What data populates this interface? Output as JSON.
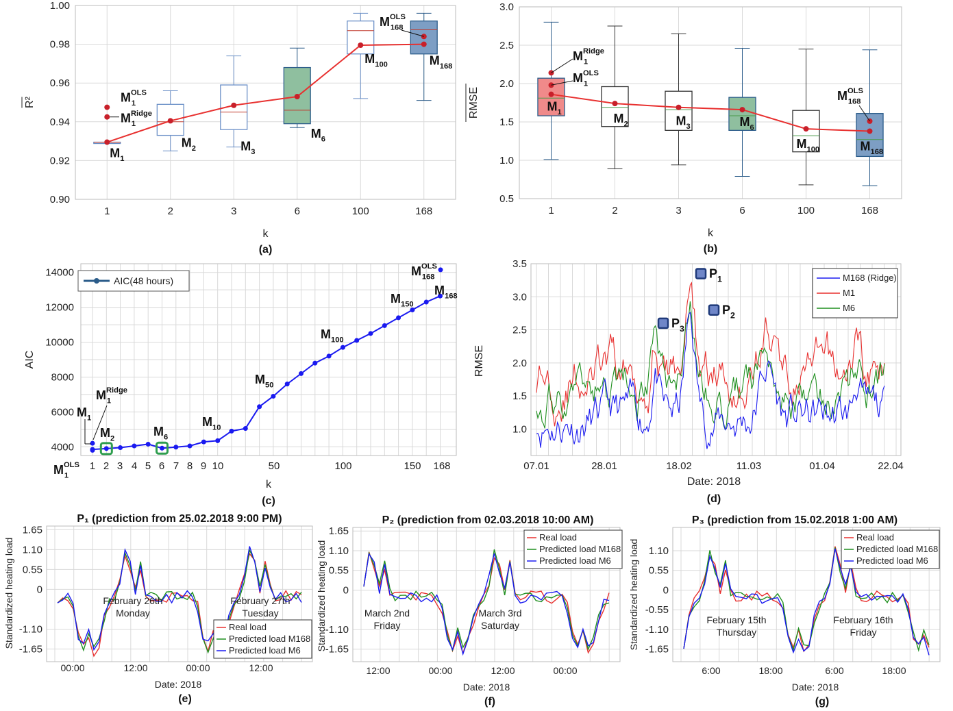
{
  "chart_data": [
    {
      "id": "a",
      "type": "box",
      "panel_label": "(a)",
      "xlabel": "k",
      "ylabel": "R²",
      "categories": [
        "1",
        "2",
        "3",
        "6",
        "100",
        "168"
      ],
      "ylim": [
        0.9,
        1.0
      ],
      "yticks": [
        "0.90",
        "0.92",
        "0.94",
        "0.96",
        "0.98",
        "1.00"
      ],
      "boxes": [
        {
          "k": "1",
          "min": 0.9295,
          "q1": 0.9295,
          "median": 0.9295,
          "q3": 0.9295,
          "max": 0.9295,
          "fill": "none",
          "stroke": "#6a8fc7"
        },
        {
          "k": "2",
          "min": 0.925,
          "q1": 0.933,
          "median": 0.94,
          "q3": 0.949,
          "max": 0.956,
          "fill": "none",
          "stroke": "#6a8fc7"
        },
        {
          "k": "3",
          "min": 0.927,
          "q1": 0.936,
          "median": 0.945,
          "q3": 0.959,
          "max": 0.974,
          "fill": "none",
          "stroke": "#6a8fc7"
        },
        {
          "k": "6",
          "min": 0.937,
          "q1": 0.939,
          "median": 0.946,
          "q3": 0.968,
          "max": 0.978,
          "fill": "#8fbf9f",
          "stroke": "#2b5c8a"
        },
        {
          "k": "100",
          "min": 0.952,
          "q1": 0.975,
          "median": 0.987,
          "q3": 0.992,
          "max": 0.996,
          "fill": "none",
          "stroke": "#6a8fc7"
        },
        {
          "k": "168",
          "min": 0.951,
          "q1": 0.975,
          "median": 0.9875,
          "q3": 0.992,
          "max": 0.996,
          "fill": "#7d9ec4",
          "stroke": "#2b5c8a"
        }
      ],
      "mean_line": [
        0.9295,
        0.9405,
        0.9485,
        0.953,
        0.9795,
        0.98
      ],
      "extra_points": [
        {
          "k": "1",
          "value": 0.9475,
          "label": "M",
          "sub": "1",
          "sup": "OLS"
        },
        {
          "k": "1",
          "value": 0.9425,
          "label": "M",
          "sub": "1",
          "sup": "Ridge"
        },
        {
          "k": "168",
          "value": 0.984,
          "label": "M",
          "sub": "168",
          "sup": "OLS"
        }
      ],
      "point_labels": [
        {
          "label": "M",
          "sub": "1"
        },
        {
          "label": "M",
          "sub": "2"
        },
        {
          "label": "M",
          "sub": "3"
        },
        {
          "label": "M",
          "sub": "6"
        },
        {
          "label": "M",
          "sub": "100"
        },
        {
          "label": "M",
          "sub": "168"
        }
      ],
      "line_color": "#e8302f"
    },
    {
      "id": "b",
      "type": "box",
      "panel_label": "(b)",
      "xlabel": "k",
      "ylabel": "RMSE",
      "categories": [
        "1",
        "2",
        "3",
        "6",
        "100",
        "168"
      ],
      "ylim": [
        0.5,
        3.0
      ],
      "yticks": [
        "0.5",
        "1.0",
        "1.5",
        "2.0",
        "2.5",
        "3.0"
      ],
      "boxes": [
        {
          "k": "1",
          "min": 1.01,
          "q1": 1.58,
          "median": 1.81,
          "q3": 2.07,
          "max": 2.8,
          "fill": "#f08a8a",
          "stroke": "#2b5c8a"
        },
        {
          "k": "2",
          "min": 0.89,
          "q1": 1.44,
          "median": 1.69,
          "q3": 1.96,
          "max": 2.75,
          "fill": "none",
          "stroke": "#333"
        },
        {
          "k": "3",
          "min": 0.94,
          "q1": 1.39,
          "median": 1.66,
          "q3": 1.9,
          "max": 2.65,
          "fill": "none",
          "stroke": "#333"
        },
        {
          "k": "6",
          "min": 0.79,
          "q1": 1.39,
          "median": 1.58,
          "q3": 1.82,
          "max": 2.46,
          "fill": "#8fbf9f",
          "stroke": "#2b5c8a"
        },
        {
          "k": "100",
          "min": 0.68,
          "q1": 1.11,
          "median": 1.32,
          "q3": 1.65,
          "max": 2.45,
          "fill": "none",
          "stroke": "#333"
        },
        {
          "k": "168",
          "min": 0.67,
          "q1": 1.05,
          "median": 1.27,
          "q3": 1.61,
          "max": 2.44,
          "fill": "#7d9ec4",
          "stroke": "#2b5c8a"
        }
      ],
      "mean_line": [
        1.86,
        1.74,
        1.69,
        1.66,
        1.41,
        1.38
      ],
      "extra_points": [
        {
          "k": "1",
          "value": 2.14,
          "label": "M",
          "sub": "1",
          "sup": "Ridge"
        },
        {
          "k": "1",
          "value": 1.98,
          "label": "M",
          "sub": "1",
          "sup": "OLS"
        },
        {
          "k": "168",
          "value": 1.51,
          "label": "M",
          "sub": "168",
          "sup": "OLS"
        }
      ],
      "point_labels": [
        {
          "label": "M",
          "sub": "1"
        },
        {
          "label": "M",
          "sub": "2"
        },
        {
          "label": "M",
          "sub": "3"
        },
        {
          "label": "M",
          "sub": "6"
        },
        {
          "label": "M",
          "sub": "100"
        },
        {
          "label": "M",
          "sub": "168"
        }
      ],
      "line_color": "#e8302f"
    },
    {
      "id": "c",
      "type": "line",
      "panel_label": "(c)",
      "xlabel": "k",
      "ylabel": "AIC",
      "legend": "AIC(48 hours)",
      "ylim": [
        3500,
        14500
      ],
      "yticks": [
        "4000",
        "6000",
        "8000",
        "10000",
        "12000",
        "14000"
      ],
      "xticks": [
        "1",
        "2",
        "3",
        "4",
        "5",
        "6",
        "7",
        "8",
        "9",
        "10",
        "50",
        "100",
        "150",
        "168"
      ],
      "series": [
        {
          "values": [
            3850,
            3900,
            3950,
            4050,
            4150,
            3920,
            3980,
            4050,
            4280,
            4350,
            4900,
            5050,
            6300,
            6900,
            7600,
            8200,
            8800,
            9200,
            9700,
            10100,
            10500,
            10950,
            11400,
            11850,
            12300,
            12650
          ],
          "color": "#1a1af0"
        }
      ],
      "extra_points": [
        {
          "value": 4200,
          "label": "M",
          "sub": "1",
          "sup": "Ridge"
        },
        {
          "value": 3800,
          "label": "M",
          "sub": "1",
          "sup": "OLS"
        },
        {
          "value": 14150,
          "label": "M",
          "sub": "168",
          "sup": "OLS"
        }
      ],
      "point_labels": [
        {
          "label": "M",
          "sub": "1"
        },
        {
          "label": "M",
          "sub": "2"
        },
        {
          "label": "M",
          "sub": "6"
        },
        {
          "label": "M",
          "sub": "10"
        },
        {
          "label": "M",
          "sub": "50"
        },
        {
          "label": "M",
          "sub": "100"
        },
        {
          "label": "M",
          "sub": "150"
        },
        {
          "label": "M",
          "sub": "168"
        }
      ],
      "highlight": [
        "M2",
        "M6"
      ]
    },
    {
      "id": "d",
      "type": "line",
      "panel_label": "(d)",
      "xlabel": "Date: 2018",
      "ylabel": "RMSE",
      "ylim": [
        0.6,
        3.5
      ],
      "yticks": [
        "1.0",
        "1.5",
        "2.0",
        "2.5",
        "3.0",
        "3.5"
      ],
      "xticks": [
        "07.01",
        "28.01",
        "18.02",
        "11.03",
        "01.04",
        "22.04"
      ],
      "series": [
        {
          "name": "M168 (Ridge)",
          "color": "#1a1af0"
        },
        {
          "name": "M1",
          "color": "#e8302f"
        },
        {
          "name": "M6",
          "color": "#1f8f1f"
        }
      ],
      "markers": [
        {
          "label": "P",
          "sub": "1",
          "value": 3.35
        },
        {
          "label": "P",
          "sub": "2",
          "value": 2.8
        },
        {
          "label": "P",
          "sub": "3",
          "value": 2.6
        }
      ]
    },
    {
      "id": "e",
      "type": "line",
      "panel_label": "(e)",
      "title": "P₁ (prediction from 25.02.2018 9:00 PM)",
      "xlabel": "Date: 2018",
      "ylabel": "Standardized heating load",
      "yticks": [
        "1.65",
        "1.10",
        "0.55",
        "0",
        "-1.10",
        "-1.65"
      ],
      "xticks": [
        "00:00",
        "12:00",
        "00:00",
        "12:00"
      ],
      "day_labels": [
        "February 26th",
        "Monday",
        "February 27th",
        "Tuesday"
      ],
      "legend": [
        "Real load",
        "Predicted load M168",
        "Predicted load M6"
      ]
    },
    {
      "id": "f",
      "type": "line",
      "panel_label": "(f)",
      "title": "P₂ (prediction from 02.03.2018 10:00 AM)",
      "xlabel": "Date: 2018",
      "ylabel": "Standardized heating load",
      "yticks": [
        "1.65",
        "1.10",
        "0.55",
        "0",
        "-1.10",
        "-1.65"
      ],
      "xticks": [
        "12:00",
        "00:00",
        "12:00",
        "00:00"
      ],
      "day_labels": [
        "March 2nd",
        "Friday",
        "March 3rd",
        "Saturday"
      ],
      "legend": [
        "Real load",
        "Predicted load M168",
        "Predicted load M6"
      ]
    },
    {
      "id": "g",
      "type": "line",
      "panel_label": "(g)",
      "title": "P₃ (prediction from 15.02.2018 1:00 AM)",
      "xlabel": "Date: 2018",
      "ylabel": "Standardized heating load",
      "yticks": [
        "1.10",
        "0.55",
        "0",
        "-0.55",
        "-1.10",
        "-1.65"
      ],
      "xticks": [
        "6:00",
        "18:00",
        "6:00",
        "18:00"
      ],
      "day_labels": [
        "February 15th",
        "Thursday",
        "February 16th",
        "Friday"
      ],
      "legend": [
        "Real load",
        "Predicted load M168",
        "Predicted load M6"
      ]
    }
  ],
  "colors": {
    "red": "#e8302f",
    "blue": "#1a1af0",
    "green": "#1f8f1f"
  }
}
